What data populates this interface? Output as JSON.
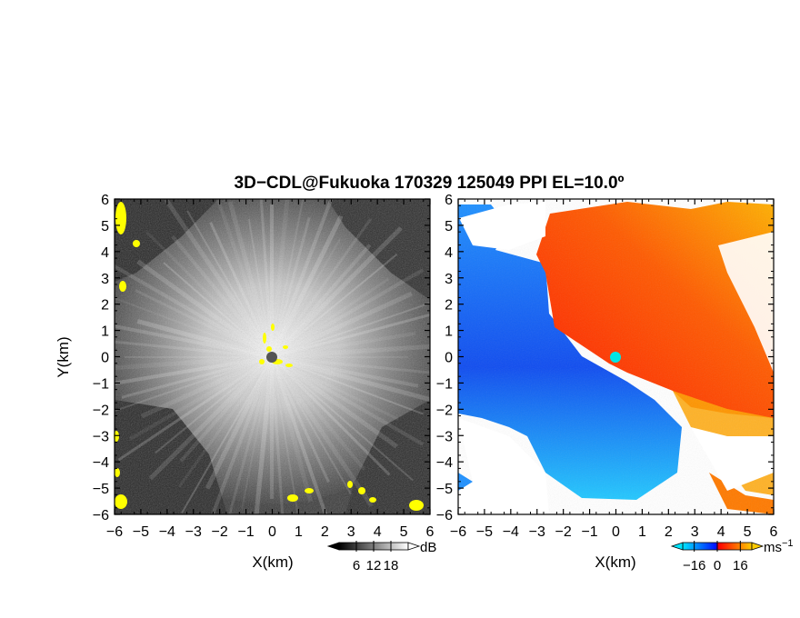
{
  "title": "3D−CDL@Fukuoka 170329 125049 PPI EL=10.0º",
  "chart_data": [
    {
      "type": "heatmap",
      "field": "reflectivity",
      "xlabel": "X(km)",
      "ylabel": "Y(km)",
      "xlim": [
        -6,
        6
      ],
      "ylim": [
        -6,
        6
      ],
      "xticks": [
        "−6",
        "−5",
        "−4",
        "−3",
        "−2",
        "−1",
        "0",
        "1",
        "2",
        "3",
        "4",
        "5",
        "6"
      ],
      "yticks": [
        "6",
        "5",
        "4",
        "3",
        "2",
        "1",
        "0",
        "−1",
        "−2",
        "−3",
        "−4",
        "−5",
        "−6"
      ],
      "colorbar": {
        "unit": "dB",
        "ticks": [
          "6",
          "12",
          "18"
        ],
        "tick_values": [
          6,
          12,
          18
        ],
        "range": [
          0,
          24
        ],
        "colormap": "grayscale",
        "colors": [
          "#000000",
          "#ffffff"
        ]
      },
      "radar_site": [
        0,
        0
      ],
      "highlight_color": "#ffff00",
      "site_marker_color": "#555555"
    },
    {
      "type": "heatmap",
      "field": "doppler_velocity",
      "xlabel": "X(km)",
      "xlim": [
        -6,
        6
      ],
      "ylim": [
        -6,
        6
      ],
      "xticks": [
        "−6",
        "−5",
        "−4",
        "−3",
        "−2",
        "−1",
        "0",
        "1",
        "2",
        "3",
        "4",
        "5",
        "6"
      ],
      "yticks": [
        "6",
        "5",
        "4",
        "3",
        "2",
        "1",
        "0",
        "−1",
        "−2",
        "−3",
        "−4",
        "−5",
        "−6"
      ],
      "colorbar": {
        "unit": "ms",
        "unit_sup": "−1",
        "ticks": [
          "−16",
          "0",
          "16"
        ],
        "tick_values": [
          -16,
          0,
          16
        ],
        "range": [
          -24,
          24
        ],
        "colormap": "blue-red",
        "colors": [
          "#00e5ff",
          "#0020ff",
          "#ff0000",
          "#ffcc00"
        ]
      },
      "radar_site": [
        0,
        0
      ],
      "site_marker_color": "#00e5e5"
    }
  ]
}
